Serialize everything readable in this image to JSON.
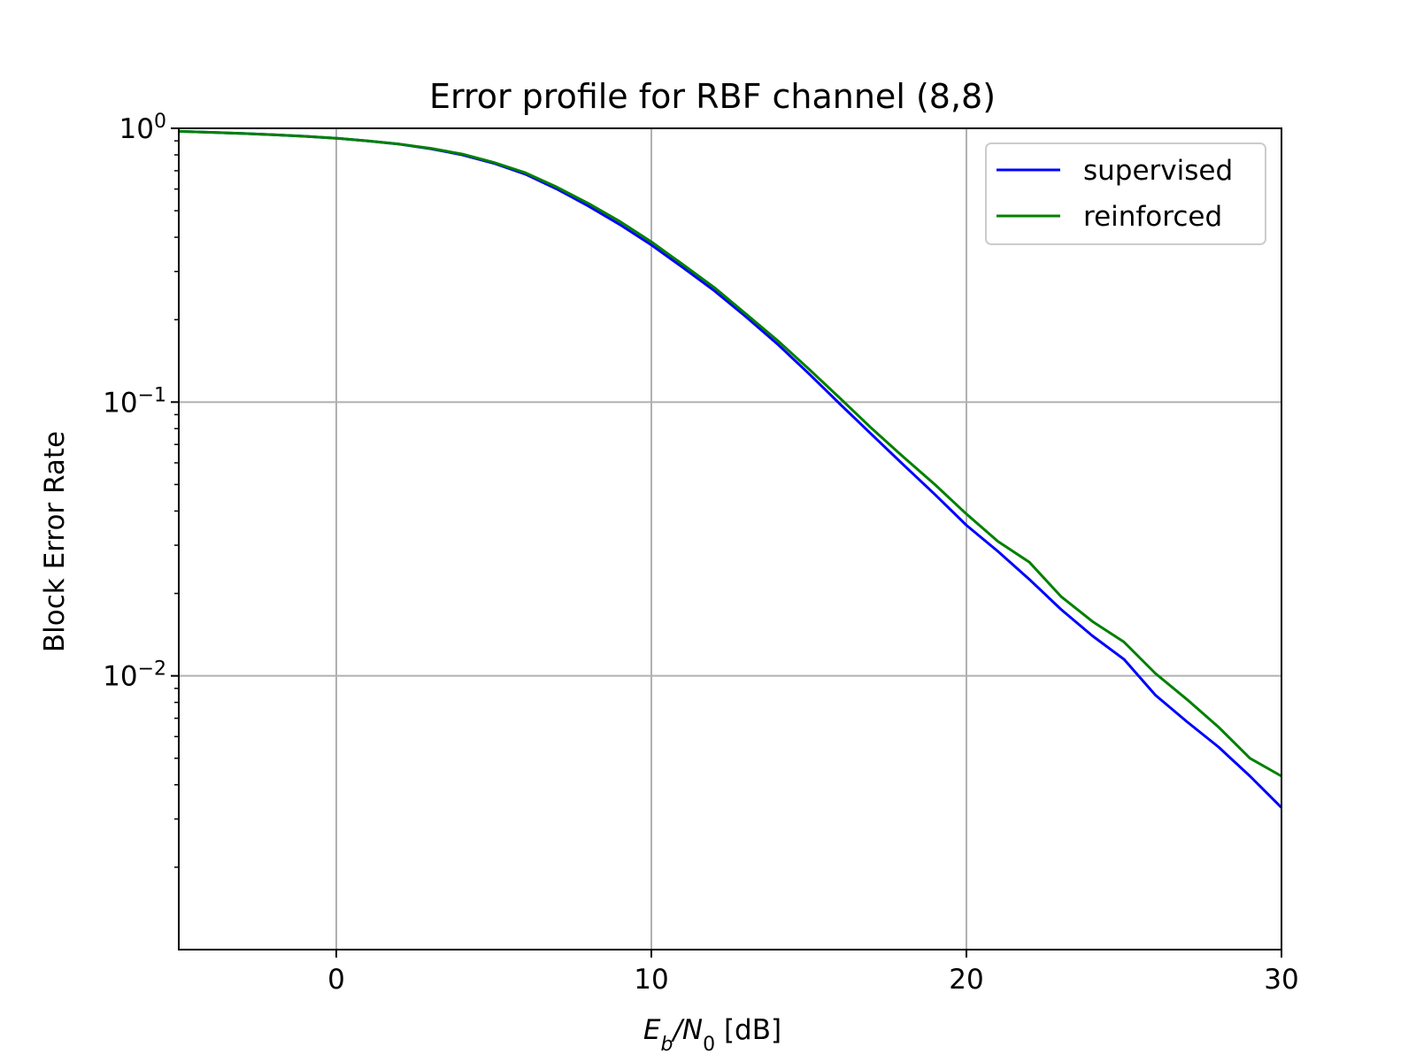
{
  "chart_data": {
    "type": "line",
    "title": "Error profile for RBF channel (8,8)",
    "xlabel": {
      "main": "E",
      "sub_b": "b",
      "slash": "/N",
      "sub_0": "0",
      "unit": " [dB]"
    },
    "ylabel": "Block Error Rate",
    "xlim": [
      -5,
      30
    ],
    "ylim": [
      0.001,
      1
    ],
    "yscale": "log",
    "grid": true,
    "legend_position": "top-right",
    "x_ticks": [
      {
        "value": 0,
        "label": "0"
      },
      {
        "value": 10,
        "label": "10"
      },
      {
        "value": 20,
        "label": "20"
      },
      {
        "value": 30,
        "label": "30"
      }
    ],
    "y_ticks": [
      {
        "value": 1,
        "base": "10",
        "exp": "0"
      },
      {
        "value": 0.1,
        "base": "10",
        "exp": "−1"
      },
      {
        "value": 0.01,
        "base": "10",
        "exp": "−2"
      }
    ],
    "x": [
      -5,
      -4,
      -3,
      -2,
      -1,
      0,
      1,
      2,
      3,
      4,
      5,
      6,
      7,
      8,
      9,
      10,
      11,
      12,
      13,
      14,
      15,
      16,
      17,
      18,
      19,
      20,
      21,
      22,
      23,
      24,
      25,
      26,
      27,
      28,
      29,
      30
    ],
    "series": [
      {
        "name": "supervised",
        "color": "#0000ff",
        "values": [
          0.975,
          0.967,
          0.958,
          0.947,
          0.935,
          0.92,
          0.9,
          0.875,
          0.842,
          0.8,
          0.745,
          0.68,
          0.6,
          0.52,
          0.445,
          0.375,
          0.31,
          0.255,
          0.205,
          0.163,
          0.127,
          0.098,
          0.076,
          0.059,
          0.046,
          0.0355,
          0.0285,
          0.0225,
          0.0175,
          0.014,
          0.0115,
          0.0085,
          0.0068,
          0.0055,
          0.0043,
          0.0033
        ]
      },
      {
        "name": "reinforced",
        "color": "#008000",
        "values": [
          0.975,
          0.967,
          0.958,
          0.947,
          0.935,
          0.92,
          0.9,
          0.876,
          0.845,
          0.805,
          0.75,
          0.688,
          0.61,
          0.532,
          0.457,
          0.385,
          0.318,
          0.262,
          0.21,
          0.168,
          0.132,
          0.103,
          0.08,
          0.063,
          0.05,
          0.039,
          0.031,
          0.026,
          0.0195,
          0.0158,
          0.0133,
          0.0102,
          0.0082,
          0.0065,
          0.005,
          0.0043
        ]
      }
    ]
  }
}
